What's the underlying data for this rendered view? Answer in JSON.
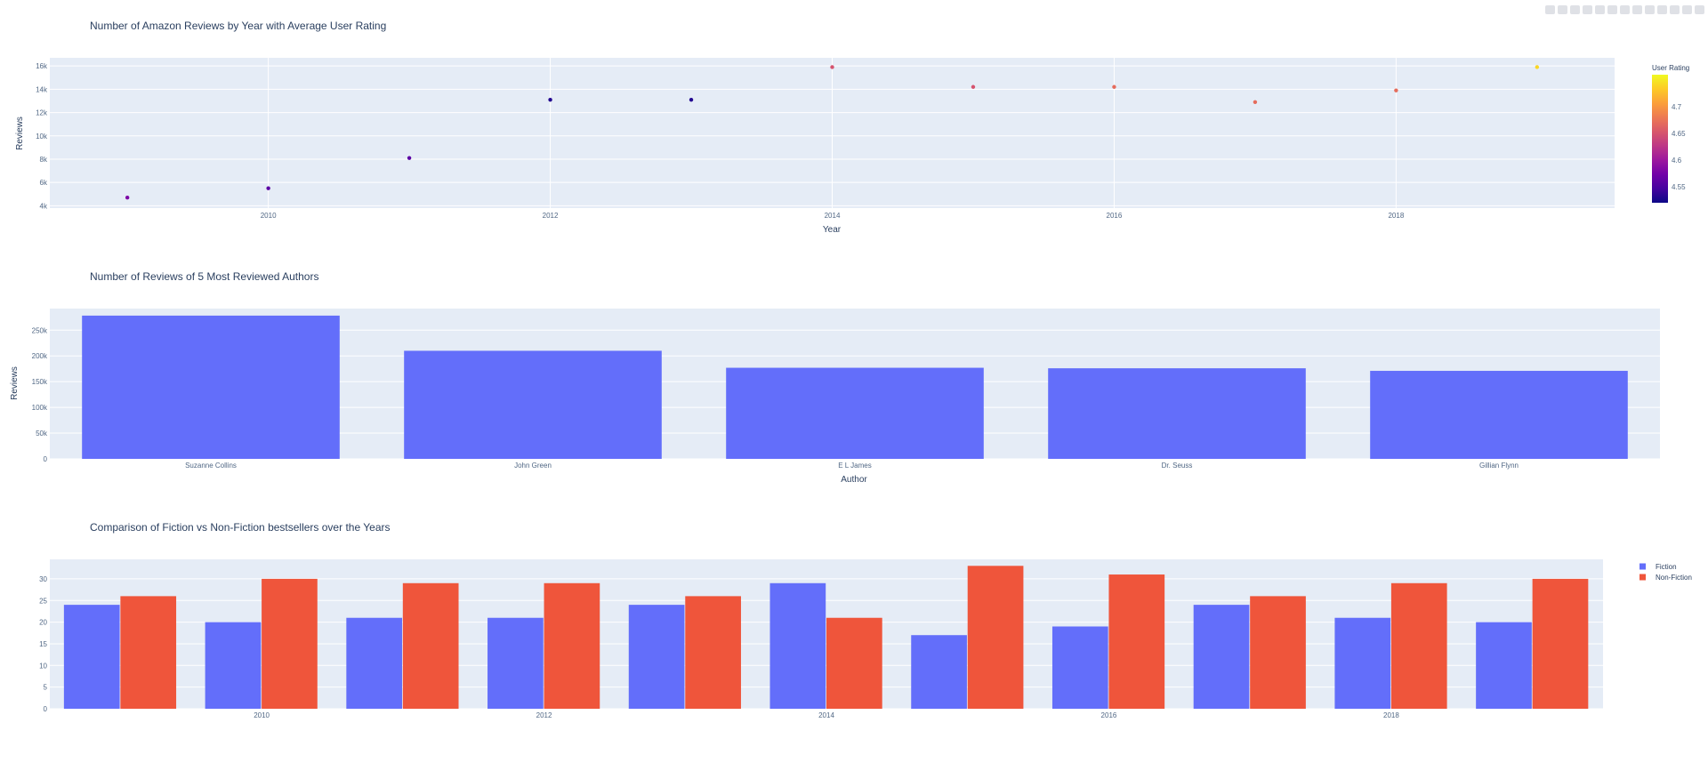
{
  "chart_data": [
    {
      "type": "scatter",
      "title": "Number of Amazon Reviews by Year with Average User Rating",
      "xlabel": "Year",
      "ylabel": "Reviews",
      "xlim": [
        2008.45,
        2019.55
      ],
      "ylim": [
        3800,
        16700
      ],
      "x_ticks": [
        2010,
        2012,
        2014,
        2016,
        2018
      ],
      "y_ticks": [
        4000,
        6000,
        8000,
        10000,
        12000,
        14000,
        16000
      ],
      "y_tick_labels": [
        "4k",
        "6k",
        "8k",
        "10k",
        "12k",
        "14k",
        "16k"
      ],
      "x": [
        2009,
        2010,
        2011,
        2012,
        2013,
        2014,
        2015,
        2016,
        2017,
        2018,
        2019
      ],
      "y": [
        4700,
        5500,
        8100,
        13100,
        13100,
        15900,
        14200,
        14200,
        12900,
        13900,
        15900
      ],
      "color": [
        4.58,
        4.56,
        4.56,
        4.53,
        4.53,
        4.65,
        4.65,
        4.67,
        4.67,
        4.67,
        4.74
      ],
      "colorbar": {
        "title": "User Rating",
        "range": [
          4.52,
          4.76
        ],
        "ticks": [
          4.55,
          4.6,
          4.65,
          4.7
        ],
        "tick_labels": [
          "4.55",
          "4.6",
          "4.65",
          "4.7"
        ],
        "colors": [
          "#0d0887",
          "#46039f",
          "#7201a8",
          "#9c179e",
          "#bd3786",
          "#d8576b",
          "#ed7953",
          "#fb9f3a",
          "#fdca26",
          "#f0f921"
        ]
      },
      "grid": true,
      "colors": {
        "plot_bg": "#e5ecf6",
        "grid": "#ffffff",
        "text": "#2a3f5f",
        "tick": "#506784"
      }
    },
    {
      "type": "bar",
      "title": "Number of Reviews of 5 Most Reviewed Authors",
      "xlabel": "Author",
      "ylabel": "Reviews",
      "categories": [
        "Suzanne Collins",
        "John Green",
        "E L James",
        "Dr. Seuss",
        "Gillian Flynn"
      ],
      "values": [
        278329,
        210000,
        177000,
        176000,
        171000
      ],
      "ylim": [
        0,
        292000
      ],
      "y_ticks": [
        0,
        50000,
        100000,
        150000,
        200000,
        250000
      ],
      "y_tick_labels": [
        "0",
        "50k",
        "100k",
        "150k",
        "200k",
        "250k"
      ],
      "grid": true,
      "colors": {
        "bar": "#636efa",
        "plot_bg": "#e5ecf6",
        "grid": "#ffffff",
        "text": "#2a3f5f",
        "tick": "#506784"
      }
    },
    {
      "type": "bar",
      "title": "Comparison of Fiction vs Non-Fiction bestsellers over the Years",
      "xlabel": "",
      "ylabel": "",
      "categories": [
        2009,
        2010,
        2011,
        2012,
        2013,
        2014,
        2015,
        2016,
        2017,
        2018,
        2019
      ],
      "x_ticks": [
        2010,
        2012,
        2014,
        2016,
        2018
      ],
      "series": [
        {
          "name": "Fiction",
          "values": [
            24,
            20,
            21,
            21,
            24,
            29,
            17,
            19,
            24,
            21,
            20
          ],
          "color": "#636efa"
        },
        {
          "name": "Non-Fiction",
          "values": [
            26,
            30,
            29,
            29,
            26,
            21,
            33,
            31,
            26,
            29,
            30
          ],
          "color": "#ef553b"
        }
      ],
      "ylim": [
        0,
        34.5
      ],
      "y_ticks": [
        0,
        5,
        10,
        15,
        20,
        25,
        30
      ],
      "legend": "top-right",
      "grid": true,
      "colors": {
        "plot_bg": "#e5ecf6",
        "grid": "#ffffff",
        "text": "#2a3f5f",
        "tick": "#506784"
      }
    }
  ]
}
